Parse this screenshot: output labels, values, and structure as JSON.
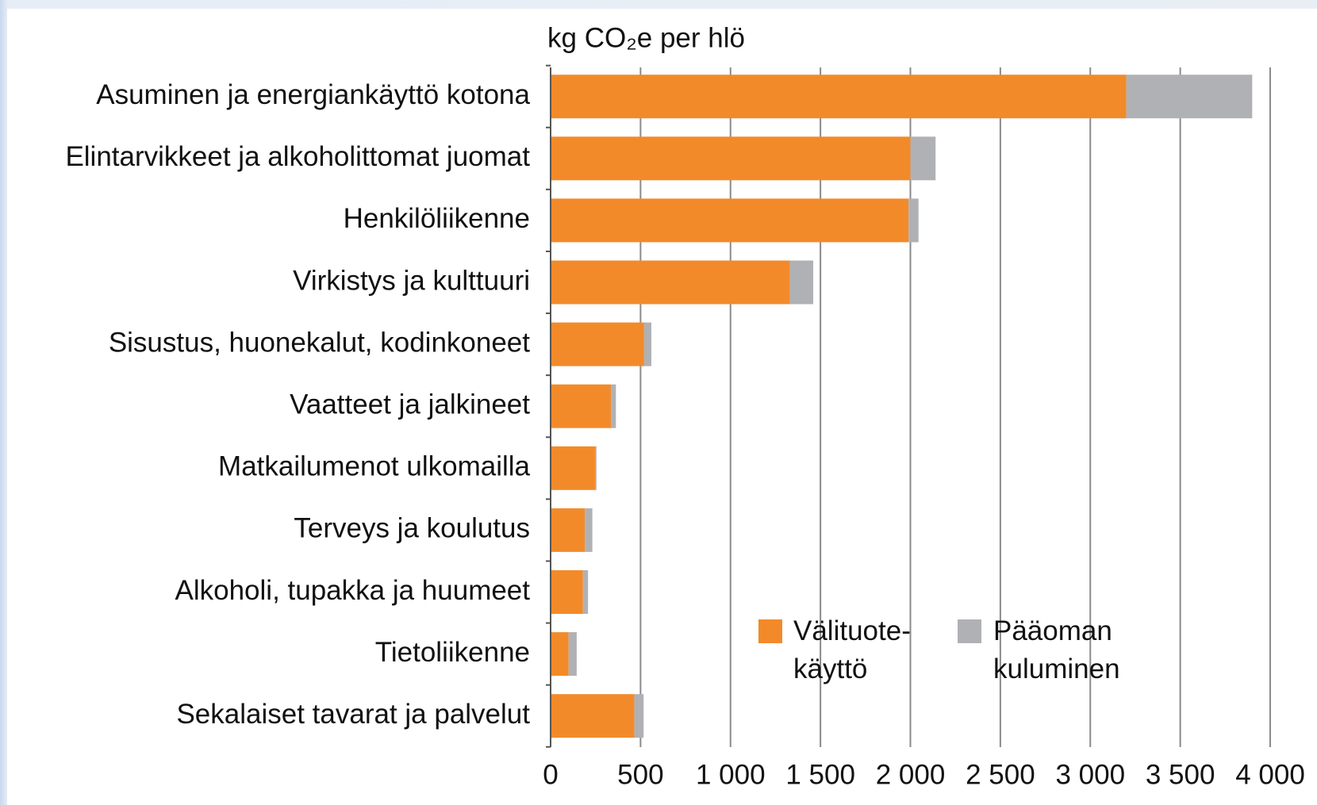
{
  "chart_data": {
    "type": "stacked-bar-horizontal",
    "axis_label": "kg CO₂e per hlö",
    "categories": [
      "Asuminen ja energiankäyttö kotona",
      "Elintarvikkeet ja alkoholittomat juomat",
      "Henkilöliikenne",
      "Virkistys ja kulttuuri",
      "Sisustus, huonekalut, kodinkoneet",
      "Vaatteet ja jalkineet",
      "Matkailumenot ulkomailla",
      "Terveys ja koulutus",
      "Alkoholi, tupakka ja huumeet",
      "Tietoliikenne",
      "Sekalaiset tavarat ja palvelut"
    ],
    "series": [
      {
        "name": "Välituote-käyttö",
        "color": "#f28a2a",
        "values": [
          3200,
          2000,
          1990,
          1330,
          520,
          335,
          250,
          190,
          180,
          100,
          465
        ]
      },
      {
        "name": "Pääoman kuluminen",
        "color": "#b0b1b5",
        "values": [
          700,
          140,
          55,
          130,
          40,
          28,
          5,
          42,
          28,
          45,
          52
        ]
      }
    ],
    "xlim": [
      0,
      4000
    ],
    "xticks": [
      0,
      500,
      {
        "value": 1000,
        "label": "1 000"
      },
      {
        "value": 1500,
        "label": "1 500"
      },
      {
        "value": 2000,
        "label": "2 000"
      },
      {
        "value": 2500,
        "label": "2 500"
      },
      {
        "value": 3000,
        "label": "3 000"
      },
      {
        "value": 3500,
        "label": "3 500"
      },
      {
        "value": 4000,
        "label": "4 000"
      }
    ],
    "grid": true
  }
}
